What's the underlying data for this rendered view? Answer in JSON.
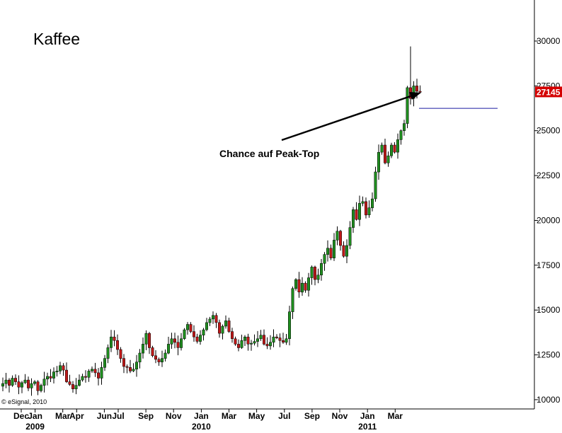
{
  "chart_data": {
    "type": "candlestick",
    "title": "Kaffee",
    "annotation": "Chance auf Peak-Top",
    "copyright": "© eSignal, 2010",
    "last_value": "27145",
    "ylim": [
      9800,
      31500
    ],
    "y_ticks": [
      10000,
      12500,
      15000,
      17500,
      20000,
      22500,
      25000,
      27500,
      30000
    ],
    "x_labels": [
      {
        "label": "Dec",
        "at": "2008-12"
      },
      {
        "label": "Jan",
        "at": "2009-01"
      },
      {
        "label": "Mar",
        "at": "2009-03"
      },
      {
        "label": "Apr",
        "at": "2009-04"
      },
      {
        "label": "Jun",
        "at": "2009-06"
      },
      {
        "label": "Jul",
        "at": "2009-07"
      },
      {
        "label": "Sep",
        "at": "2009-09"
      },
      {
        "label": "Nov",
        "at": "2009-11"
      },
      {
        "label": "Jan",
        "at": "2010-01"
      },
      {
        "label": "Mar",
        "at": "2010-03"
      },
      {
        "label": "May",
        "at": "2010-05"
      },
      {
        "label": "Jul",
        "at": "2010-07"
      },
      {
        "label": "Sep",
        "at": "2010-09"
      },
      {
        "label": "Nov",
        "at": "2010-11"
      },
      {
        "label": "Jan",
        "at": "2011-01"
      },
      {
        "label": "Mar",
        "at": "2011-03"
      }
    ],
    "year_labels": [
      {
        "label": "2009",
        "at": "2009-01"
      },
      {
        "label": "2010",
        "at": "2010-01"
      },
      {
        "label": "2011",
        "at": "2011-01"
      }
    ],
    "horizontal_line": 26250,
    "colors": {
      "up": "#1f8f1f",
      "down": "#c01818",
      "wick": "#000000",
      "hline": "#1a1aa0",
      "arrow": "#000000",
      "last_bg": "#d40000"
    },
    "close_path": [
      10900,
      11100,
      10800,
      11200,
      11000,
      10700,
      10950,
      11100,
      10650,
      10900,
      11000,
      10500,
      10800,
      11150,
      11300,
      11200,
      11550,
      11600,
      11900,
      11650,
      11000,
      10850,
      10600,
      10800,
      11100,
      11300,
      11250,
      11600,
      11700,
      11500,
      11200,
      11800,
      12300,
      12900,
      13500,
      13300,
      12800,
      12300,
      11850,
      11800,
      11600,
      11700,
      12100,
      12600,
      13100,
      13700,
      12900,
      12450,
      12250,
      12100,
      12300,
      12600,
      13100,
      13400,
      13200,
      12900,
      13400,
      13900,
      14200,
      13800,
      13500,
      13250,
      13600,
      13900,
      14300,
      14500,
      14700,
      14300,
      13700,
      14100,
      14400,
      13800,
      13400,
      13100,
      12900,
      13300,
      13500,
      13100,
      13150,
      13250,
      13400,
      13600,
      13100,
      13000,
      13200,
      13500,
      13450,
      13300,
      13200,
      13400,
      14900,
      16200,
      16700,
      16000,
      16500,
      16100,
      16800,
      17400,
      16700,
      16950,
      17600,
      18100,
      18450,
      17900,
      18900,
      19400,
      18600,
      18000,
      18600,
      19600,
      20600,
      20050,
      20950,
      21050,
      20300,
      20700,
      21200,
      22700,
      23800,
      24200,
      23200,
      23600,
      24200,
      23800,
      24500,
      25000,
      25400,
      27400,
      26800,
      27500,
      27200,
      27145
    ],
    "ohlc_generation": {
      "seed": 13,
      "note": "open = previous close, wicks extend a random amount beyond the body"
    }
  }
}
